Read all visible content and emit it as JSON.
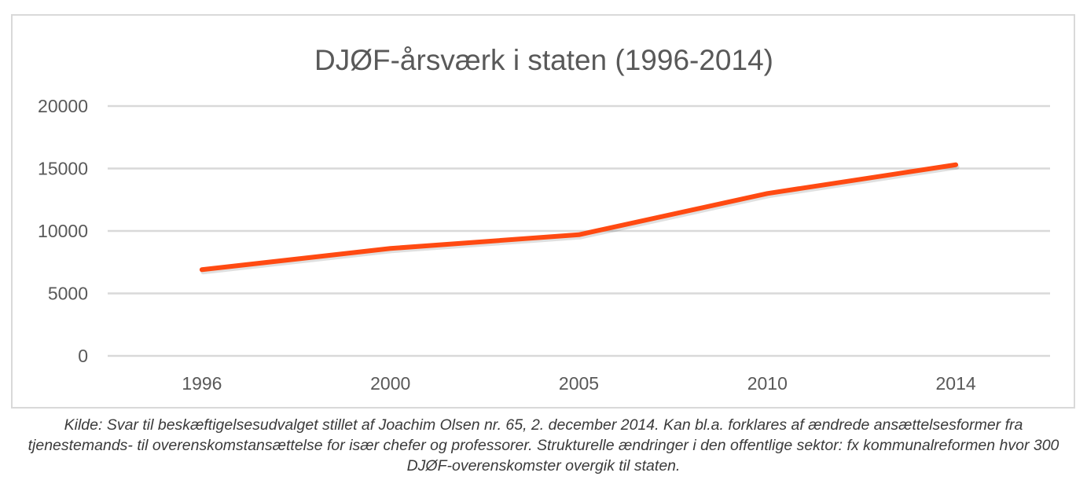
{
  "chart_data": {
    "type": "line",
    "title": "DJØF-årsværk i staten (1996-2014)",
    "xlabel": "",
    "ylabel": "",
    "categories": [
      "1996",
      "2000",
      "2005",
      "2010",
      "2014"
    ],
    "series": [
      {
        "values": [
          6900,
          8600,
          9700,
          13000,
          15300
        ]
      }
    ],
    "ylim": [
      0,
      20000
    ],
    "yticks": [
      0,
      5000,
      10000,
      15000,
      20000
    ],
    "grid": true,
    "legend": "none",
    "colors": {
      "line": "#ff4a12",
      "grid": "#d9d9d9",
      "text": "#595959",
      "title": "#595959"
    }
  },
  "caption": "Kilde: Svar til beskæftigelsesudvalget stillet af Joachim Olsen nr. 65, 2. december 2014. Kan bl.a. forklares af ændrede ansættelsesformer fra tjenestemands- til overenskomstansættelse for især chefer og professorer. Strukturelle ændringer i den offentlige sektor: fx kommunalreformen hvor 300 DJØF-overenskomster overgik til staten."
}
